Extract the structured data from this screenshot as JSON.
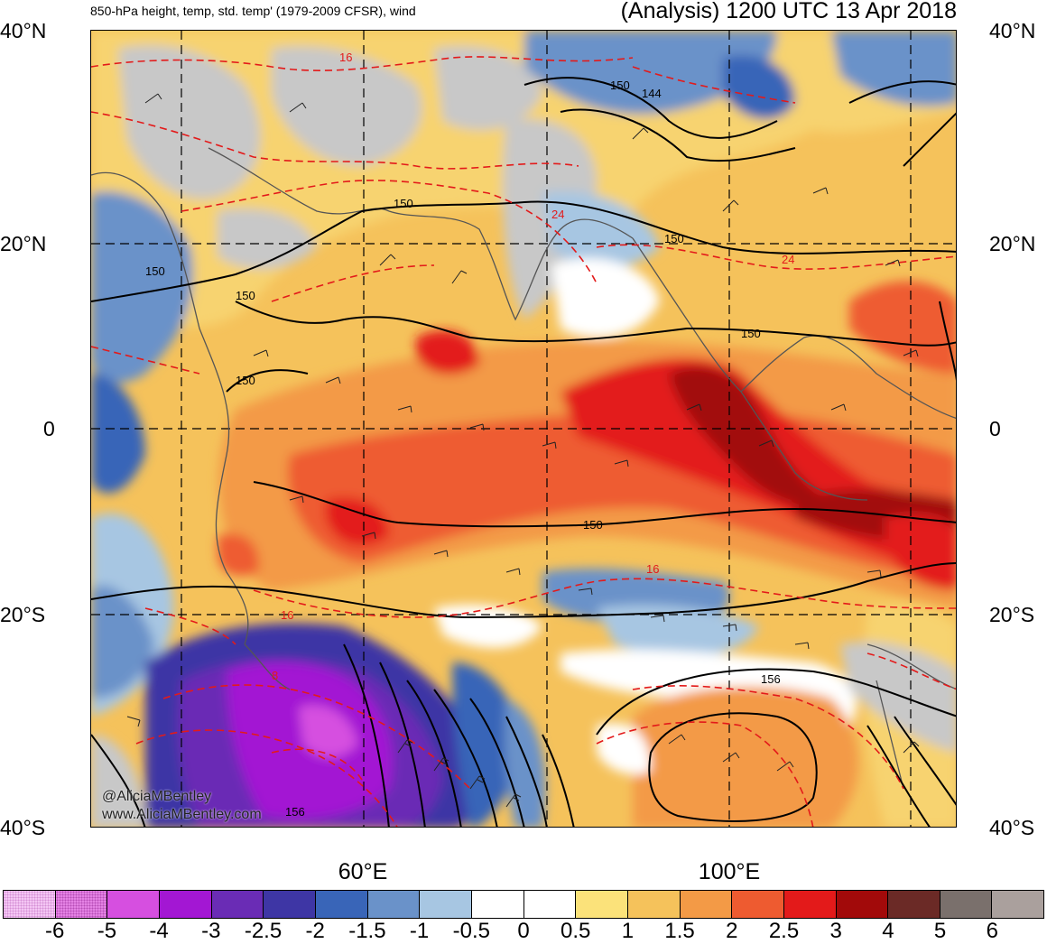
{
  "header": {
    "left_title": "850-hPa height, temp, std. temp' (1979-2009 CFSR), wind",
    "right_title": "(Analysis) 1200 UTC 13 Apr 2018"
  },
  "axes": {
    "lat_labels": [
      "40°N",
      "20°N",
      "0",
      "20°S",
      "40°S"
    ],
    "lon_labels": [
      "60°E",
      "100°E"
    ]
  },
  "contour_labels": {
    "height": [
      "150",
      "150",
      "150",
      "150",
      "150",
      "150",
      "150",
      "150",
      "156",
      "156",
      "144"
    ],
    "temperature": [
      "16",
      "24",
      "24",
      "16",
      "16",
      "8"
    ]
  },
  "watermark": {
    "line1": "@AliciaMBentley",
    "line2": "www.AliciaMBentley.com"
  },
  "colorbar": {
    "colors": [
      "#f4c6f4",
      "#e482e4",
      "#d64fe0",
      "#a317d3",
      "#6a2cb5",
      "#3e36a5",
      "#3965b8",
      "#6a92c9",
      "#a7c6e2",
      "#ffffff",
      "#ffffff",
      "#fbe27a",
      "#f5c25b",
      "#f39a46",
      "#ee5b30",
      "#e31a1a",
      "#a20a0a",
      "#6b2a26",
      "#7a706c",
      "#aaa09d"
    ],
    "labels": [
      "-6",
      "-5",
      "-4",
      "-3",
      "-2.5",
      "-2",
      "-1.5",
      "-1",
      "-0.5",
      "0",
      "0.5",
      "1",
      "1.5",
      "2",
      "2.5",
      "3",
      "4",
      "5",
      "6"
    ]
  }
}
